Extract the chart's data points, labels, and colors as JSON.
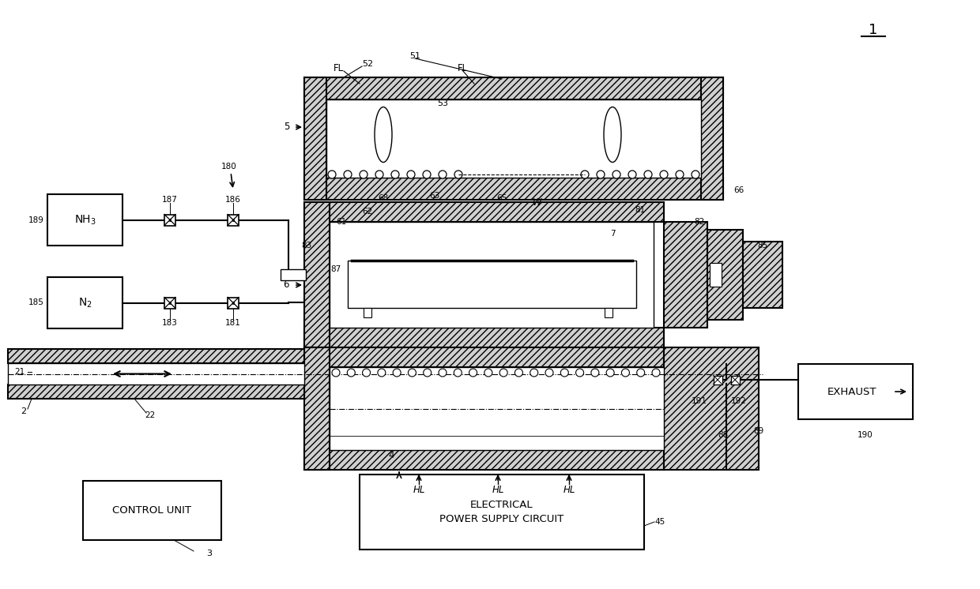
{
  "bg_color": "#ffffff",
  "lc": "#000000",
  "lw": 1.5,
  "control_unit_text": "CONTROL UNIT",
  "electrical_text": "ELECTRICAL\nPOWER SUPPLY CIRCUIT",
  "exhaust_text": "EXHAUST",
  "nh3_text": "NH$_3$",
  "n2_text": "N$_2$"
}
